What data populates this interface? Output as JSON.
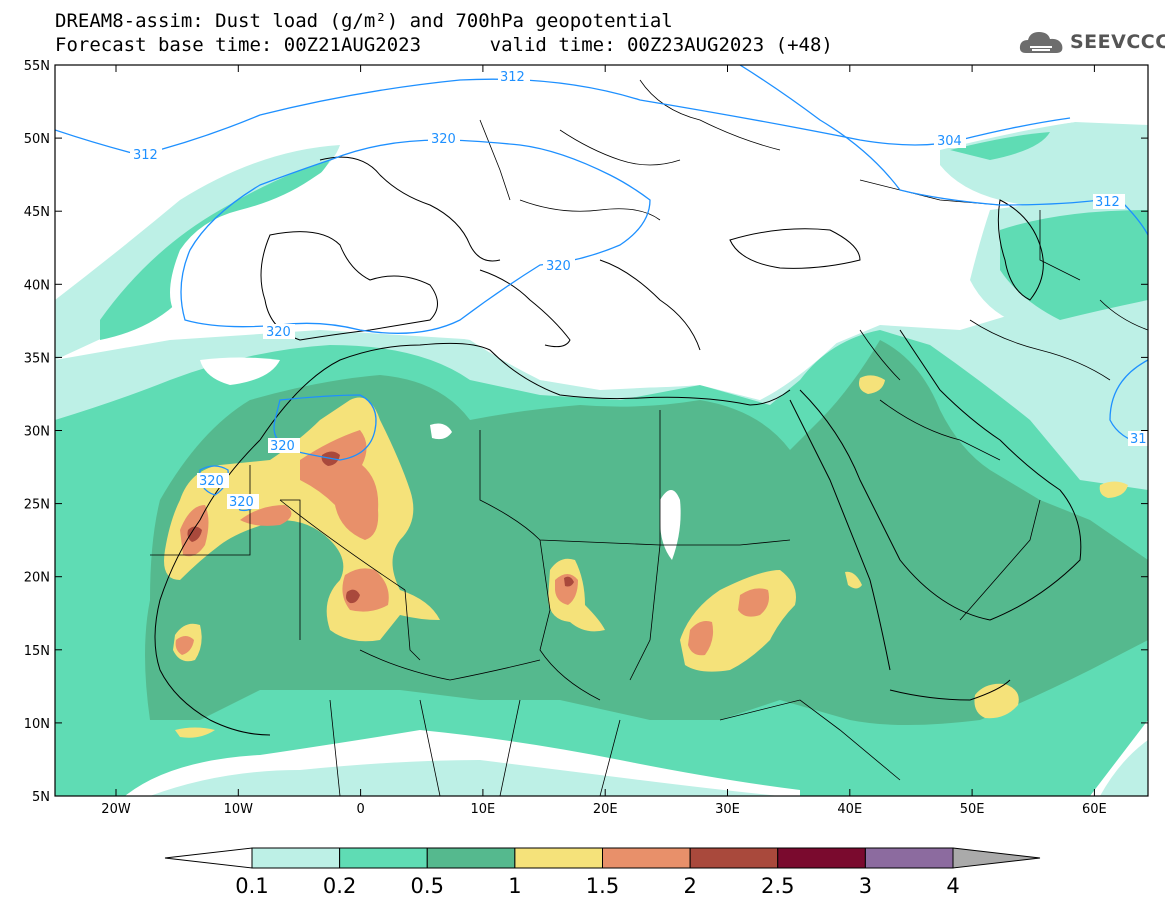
{
  "title_line1": "DREAM8-assim: Dust load (g/m²) and 700hPa geopotential",
  "title_line2": "Forecast base time: 00Z21AUG2023      valid time: 00Z23AUG2023 (+48)",
  "logo_text": "SEEVCCC",
  "lat_ticks": [
    "55N",
    "50N",
    "45N",
    "40N",
    "35N",
    "30N",
    "25N",
    "20N",
    "15N",
    "10N",
    "5N"
  ],
  "lon_ticks": [
    "20W",
    "10W",
    "0",
    "10E",
    "20E",
    "30E",
    "40E",
    "50E",
    "60E"
  ],
  "colorbar": {
    "labels": [
      "0.1",
      "0.2",
      "0.5",
      "1",
      "1.5",
      "2",
      "2.5",
      "3",
      "4"
    ],
    "colors": [
      "#ffffff",
      "#bdf0e6",
      "#5fdcb4",
      "#55b98e",
      "#f5e27a",
      "#e8906a",
      "#a9493c",
      "#7a0a2e",
      "#8c6b9f",
      "#aaaaaa"
    ]
  },
  "contour_labels": {
    "c312_west": "312",
    "c312_north": "312",
    "c320_a": "320",
    "c320_b": "320",
    "c320_c": "320",
    "c320_d": "320",
    "c320_e": "320",
    "c320_f": "320",
    "c304": "304",
    "c312_east": "312",
    "c31_edge": "31"
  }
}
